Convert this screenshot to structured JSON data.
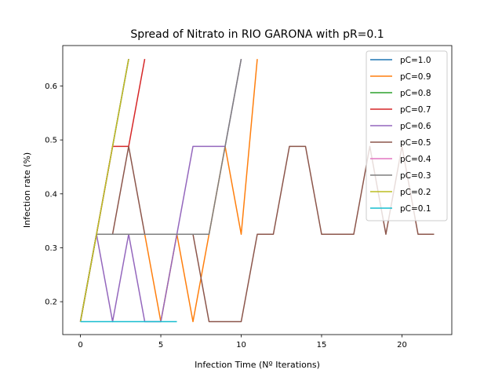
{
  "chart_data": {
    "type": "line",
    "title": "Spread of Nitrato in RIO GARONA with pR=0.1",
    "xlabel": "Infection Time (Nº Iterations)",
    "ylabel": "Infection rate (%)",
    "xlim": [
      -1.1,
      23.1
    ],
    "ylim": [
      0.139,
      0.675
    ],
    "xticks": [
      0,
      5,
      10,
      15,
      20
    ],
    "yticks": [
      0.2,
      0.3,
      0.4,
      0.5,
      0.6
    ],
    "grid": false,
    "legend_position": "top-right",
    "series": [
      {
        "name": "pC=1.0",
        "color": "#1f77b4",
        "x": [
          0,
          1,
          2,
          3
        ],
        "y": [
          0.163,
          0.325,
          0.488,
          0.65
        ]
      },
      {
        "name": "pC=0.9",
        "color": "#ff7f0e",
        "x": [
          0,
          1,
          2,
          3,
          4,
          5,
          6,
          7,
          8,
          9,
          10,
          11
        ],
        "y": [
          0.163,
          0.325,
          0.325,
          0.325,
          0.325,
          0.163,
          0.325,
          0.163,
          0.325,
          0.488,
          0.325,
          0.65
        ]
      },
      {
        "name": "pC=0.8",
        "color": "#2ca02c",
        "x": [
          0,
          1,
          2,
          3
        ],
        "y": [
          0.163,
          0.325,
          0.488,
          0.65
        ]
      },
      {
        "name": "pC=0.7",
        "color": "#d62728",
        "x": [
          0,
          1,
          2,
          3,
          4
        ],
        "y": [
          0.163,
          0.325,
          0.488,
          0.488,
          0.65
        ]
      },
      {
        "name": "pC=0.6",
        "color": "#9467bd",
        "x": [
          0,
          1,
          2,
          3,
          4,
          5,
          6,
          7,
          8,
          9,
          10
        ],
        "y": [
          0.163,
          0.325,
          0.163,
          0.325,
          0.163,
          0.163,
          0.325,
          0.488,
          0.488,
          0.488,
          0.65
        ]
      },
      {
        "name": "pC=0.5",
        "color": "#8c564b",
        "x": [
          0,
          1,
          2,
          3,
          4,
          5,
          6,
          7,
          8,
          9,
          10,
          11,
          12,
          13,
          14,
          15,
          16,
          17,
          18,
          19,
          20,
          21,
          22
        ],
        "y": [
          0.163,
          0.325,
          0.325,
          0.488,
          0.325,
          0.325,
          0.325,
          0.325,
          0.163,
          0.163,
          0.163,
          0.325,
          0.325,
          0.488,
          0.488,
          0.325,
          0.325,
          0.325,
          0.488,
          0.325,
          0.488,
          0.325,
          0.325
        ]
      },
      {
        "name": "pC=0.4",
        "color": "#e377c2",
        "x": [
          0,
          1,
          2,
          3
        ],
        "y": [
          0.163,
          0.325,
          0.488,
          0.65
        ]
      },
      {
        "name": "pC=0.3",
        "color": "#7f7f7f",
        "x": [
          0,
          1,
          2,
          3,
          4,
          5,
          6,
          7,
          8,
          9,
          10
        ],
        "y": [
          0.163,
          0.325,
          0.325,
          0.325,
          0.325,
          0.325,
          0.325,
          0.325,
          0.325,
          0.488,
          0.65
        ]
      },
      {
        "name": "pC=0.2",
        "color": "#bcbd22",
        "x": [
          0,
          1,
          2,
          3
        ],
        "y": [
          0.163,
          0.325,
          0.488,
          0.65
        ]
      },
      {
        "name": "pC=0.1",
        "color": "#17becf",
        "x": [
          0,
          1,
          2,
          3,
          4,
          5,
          6
        ],
        "y": [
          0.163,
          0.163,
          0.163,
          0.163,
          0.163,
          0.163,
          0.163
        ]
      }
    ]
  }
}
